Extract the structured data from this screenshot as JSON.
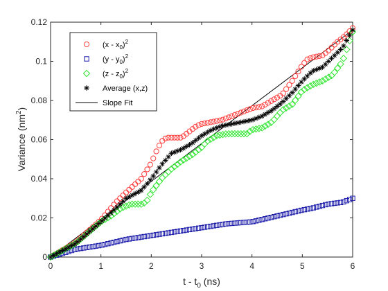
{
  "chart_data": {
    "type": "scatter",
    "title": "",
    "xlabel": "t - t",
    "xlabel_sub": "0",
    "xlabel_unit": " (ns)",
    "ylabel": "Variance (nm",
    "ylabel_sup": "2",
    "ylabel_end": ")",
    "xlim": [
      0,
      6
    ],
    "ylim": [
      0,
      0.12
    ],
    "xticks": [
      0,
      1,
      2,
      3,
      4,
      5,
      6
    ],
    "yticks": [
      0,
      0.02,
      0.04,
      0.06,
      0.08,
      0.1,
      0.12
    ],
    "xtick_labels": [
      "0",
      "1",
      "2",
      "3",
      "4",
      "5",
      "6"
    ],
    "ytick_labels": [
      "0",
      "0.02",
      "0.04",
      "0.06",
      "0.08",
      "0.1",
      "0.12"
    ],
    "grid": false,
    "legend_position": "top-left",
    "legend": [
      {
        "label": "(x - x",
        "sub": "0",
        "end": ")",
        "sup": "2",
        "marker": "circle",
        "color": "#ff3b3b"
      },
      {
        "label": "(y - y",
        "sub": "0",
        "end": ")",
        "sup": "2",
        "marker": "square",
        "color": "#1a1aaa"
      },
      {
        "label": "(z - z",
        "sub": "0",
        "end": ")",
        "sup": "2",
        "marker": "diamond",
        "color": "#33e633"
      },
      {
        "label": "Average (x,z)",
        "marker": "asterisk",
        "color": "#000000"
      },
      {
        "label": "Slope Fit",
        "marker": "line",
        "color": "#000000"
      }
    ],
    "series": [
      {
        "name": "(x - x0)^2",
        "marker": "circle",
        "color": "#ff3b3b",
        "points": [
          [
            0,
            0
          ],
          [
            0.5,
            0.0075
          ],
          [
            1,
            0.019
          ],
          [
            1.3,
            0.028
          ],
          [
            1.5,
            0.033
          ],
          [
            1.8,
            0.04
          ],
          [
            2.0,
            0.048
          ],
          [
            2.1,
            0.054
          ],
          [
            2.2,
            0.059
          ],
          [
            2.3,
            0.061
          ],
          [
            2.5,
            0.061
          ],
          [
            2.6,
            0.061
          ],
          [
            2.7,
            0.063
          ],
          [
            2.8,
            0.065
          ],
          [
            2.9,
            0.067
          ],
          [
            3.0,
            0.068
          ],
          [
            3.2,
            0.069
          ],
          [
            3.4,
            0.07
          ],
          [
            3.6,
            0.072
          ],
          [
            3.8,
            0.074
          ],
          [
            4.0,
            0.076
          ],
          [
            4.2,
            0.077
          ],
          [
            4.4,
            0.08
          ],
          [
            4.6,
            0.083
          ],
          [
            4.8,
            0.09
          ],
          [
            4.9,
            0.094
          ],
          [
            5.0,
            0.098
          ],
          [
            5.1,
            0.101
          ],
          [
            5.2,
            0.102
          ],
          [
            5.4,
            0.103
          ],
          [
            5.5,
            0.105
          ],
          [
            5.7,
            0.11
          ],
          [
            5.85,
            0.113
          ],
          [
            6.0,
            0.117
          ]
        ]
      },
      {
        "name": "(y - y0)^2",
        "marker": "square",
        "color": "#1a1aaa",
        "points": [
          [
            0,
            0
          ],
          [
            0.5,
            0.004
          ],
          [
            1,
            0.006
          ],
          [
            1.5,
            0.009
          ],
          [
            2.0,
            0.011
          ],
          [
            2.5,
            0.013
          ],
          [
            3.0,
            0.015
          ],
          [
            3.5,
            0.017
          ],
          [
            4.0,
            0.018
          ],
          [
            4.5,
            0.021
          ],
          [
            5.0,
            0.024
          ],
          [
            5.2,
            0.025
          ],
          [
            5.5,
            0.027
          ],
          [
            5.8,
            0.028
          ],
          [
            6.0,
            0.03
          ]
        ]
      },
      {
        "name": "(z - z0)^2",
        "marker": "diamond",
        "color": "#33e633",
        "points": [
          [
            0,
            0
          ],
          [
            0.5,
            0.007
          ],
          [
            1,
            0.018
          ],
          [
            1.2,
            0.021
          ],
          [
            1.4,
            0.025
          ],
          [
            1.6,
            0.027
          ],
          [
            1.8,
            0.027
          ],
          [
            1.9,
            0.028
          ],
          [
            2.0,
            0.033
          ],
          [
            2.2,
            0.04
          ],
          [
            2.4,
            0.045
          ],
          [
            2.6,
            0.049
          ],
          [
            2.8,
            0.052
          ],
          [
            3.0,
            0.056
          ],
          [
            3.1,
            0.059
          ],
          [
            3.3,
            0.062
          ],
          [
            3.5,
            0.063
          ],
          [
            3.7,
            0.063
          ],
          [
            3.9,
            0.063
          ],
          [
            4.0,
            0.065
          ],
          [
            4.2,
            0.066
          ],
          [
            4.4,
            0.069
          ],
          [
            4.6,
            0.075
          ],
          [
            4.8,
            0.078
          ],
          [
            5.0,
            0.085
          ],
          [
            5.2,
            0.088
          ],
          [
            5.4,
            0.09
          ],
          [
            5.6,
            0.093
          ],
          [
            5.8,
            0.1
          ],
          [
            6.0,
            0.115
          ]
        ]
      },
      {
        "name": "Average (x,z)",
        "marker": "asterisk",
        "color": "#000000",
        "points": [
          [
            0,
            0
          ],
          [
            0.5,
            0.007
          ],
          [
            1,
            0.018
          ],
          [
            1.3,
            0.025
          ],
          [
            1.5,
            0.03
          ],
          [
            1.8,
            0.034
          ],
          [
            2.0,
            0.04
          ],
          [
            2.2,
            0.047
          ],
          [
            2.4,
            0.053
          ],
          [
            2.6,
            0.055
          ],
          [
            2.8,
            0.058
          ],
          [
            3.0,
            0.062
          ],
          [
            3.2,
            0.065
          ],
          [
            3.4,
            0.067
          ],
          [
            3.6,
            0.068
          ],
          [
            3.8,
            0.069
          ],
          [
            4.0,
            0.07
          ],
          [
            4.2,
            0.072
          ],
          [
            4.4,
            0.075
          ],
          [
            4.6,
            0.079
          ],
          [
            4.8,
            0.084
          ],
          [
            5.0,
            0.09
          ],
          [
            5.2,
            0.095
          ],
          [
            5.4,
            0.097
          ],
          [
            5.6,
            0.102
          ],
          [
            5.8,
            0.107
          ],
          [
            6.0,
            0.116
          ]
        ]
      }
    ],
    "fit_line": {
      "name": "Slope Fit",
      "color": "#000000",
      "points": [
        [
          0,
          0
        ],
        [
          6,
          0.116
        ]
      ]
    }
  }
}
